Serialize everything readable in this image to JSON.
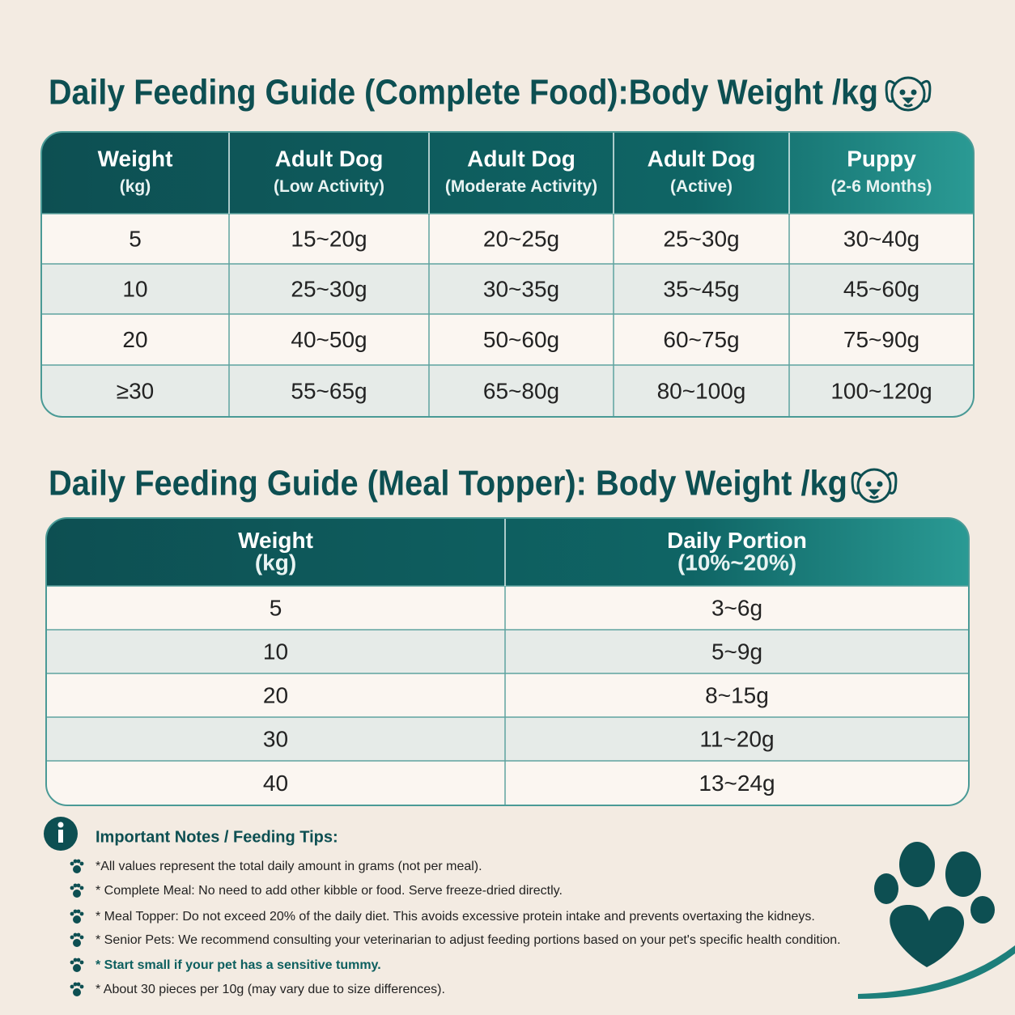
{
  "table1": {
    "title": "Daily Feeding Guide (Complete Food):Body Weight /kg",
    "headers": [
      {
        "main": "Weight",
        "sub": "(kg)"
      },
      {
        "main": "Adult Dog",
        "sub": "(Low Activity)"
      },
      {
        "main": "Adult Dog",
        "sub": "(Moderate Activity)"
      },
      {
        "main": "Adult Dog",
        "sub": "(Active)"
      },
      {
        "main": "Puppy",
        "sub": "(2-6 Months)"
      }
    ],
    "rows": [
      [
        "5",
        "15~20g",
        "20~25g",
        "25~30g",
        "30~40g"
      ],
      [
        "10",
        "25~30g",
        "30~35g",
        "35~45g",
        "45~60g"
      ],
      [
        "20",
        "40~50g",
        "50~60g",
        "60~75g",
        "75~90g"
      ],
      [
        "≥30",
        "55~65g",
        "65~80g",
        "80~100g",
        "100~120g"
      ]
    ]
  },
  "table2": {
    "title": "Daily Feeding Guide (Meal Topper): Body Weight /kg",
    "headers": [
      {
        "main": "Weight",
        "sub": "(kg)"
      },
      {
        "main": "Daily Portion",
        "sub": "(10%~20%)"
      }
    ],
    "rows": [
      [
        "5",
        "3~6g"
      ],
      [
        "10",
        "5~9g"
      ],
      [
        "20",
        "8~15g"
      ],
      [
        "30",
        "11~20g"
      ],
      [
        "40",
        "13~24g"
      ]
    ]
  },
  "notes": {
    "title": "Important Notes / Feeding Tips:",
    "items": [
      "*All values represent the total daily amount in grams (not per meal).",
      "* Complete Meal: No need to add other kibble or food. Serve freeze-dried directly.",
      "* Meal Topper: Do not exceed 20% of the daily diet. This avoids excessive protein intake and prevents overtaxing the kidneys.",
      "* Senior Pets: We recommend consulting your veterinarian to adjust feeding portions based on your pet's specific health condition.",
      "* Start small if your pet has a sensitive tummy.",
      "* About 30 pieces per 10g (may vary due to size differences)."
    ]
  }
}
